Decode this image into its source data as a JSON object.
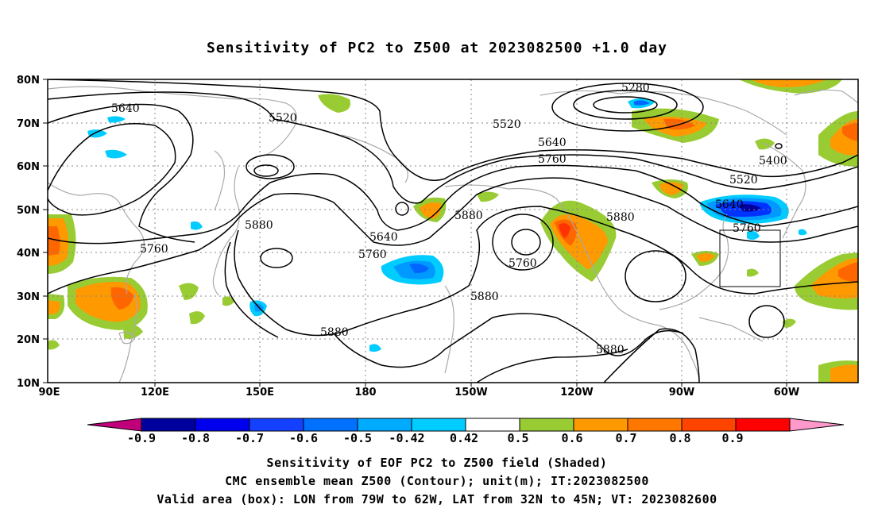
{
  "title": "Sensitivity of PC2 to Z500 at 2023082500 +1.0 day",
  "lat_labels": [
    "80N",
    "70N",
    "60N",
    "50N",
    "40N",
    "30N",
    "20N",
    "10N"
  ],
  "lon_labels": [
    "90E",
    "120E",
    "150E",
    "180",
    "150W",
    "120W",
    "90W",
    "60W"
  ],
  "contour_labels": [
    "5280",
    "5640",
    "5520",
    "5520",
    "5640",
    "5760",
    "5400",
    "5520",
    "5640",
    "5760",
    "5880",
    "5880",
    "5880",
    "5640",
    "5760",
    "5760",
    "5760",
    "5880",
    "5880",
    "5880"
  ],
  "colorbar": {
    "labels": [
      "-0.9",
      "-0.8",
      "-0.7",
      "-0.6",
      "-0.5",
      "-0.42",
      "0.42",
      "0.5",
      "0.6",
      "0.7",
      "0.8",
      "0.9"
    ],
    "colors": [
      "#c0007a",
      "#00009e",
      "#0000ee",
      "#1440ff",
      "#0070ff",
      "#00aaff",
      "#00ccff",
      "#ffffff",
      "#99cc33",
      "#ff9900",
      "#ff7700",
      "#ff4400",
      "#ff0000",
      "#ff99cc"
    ]
  },
  "valid_box": {
    "lon_from": "79W",
    "lon_to": "62W",
    "lat_from": "32N",
    "lat_to": "45N"
  },
  "captions": {
    "line1": "Sensitivity of EOF PC2 to Z500 field (Shaded)",
    "line2": "CMC ensemble mean Z500 (Contour); unit(m); IT:2023082500",
    "line3": "Valid area (box): LON from 79W to 62W, LAT from 32N to 45N; VT: 2023082600"
  }
}
